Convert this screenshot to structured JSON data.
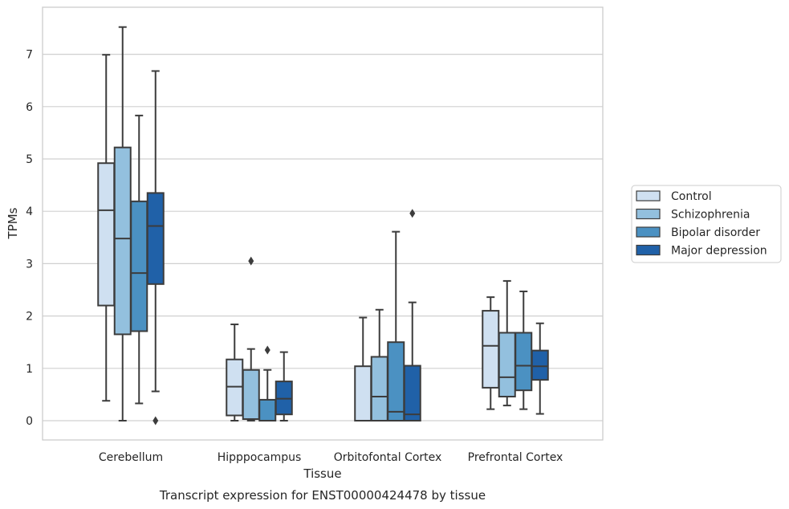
{
  "chart_data": {
    "type": "box",
    "title": "Transcript expression for ENST00000424478 by tissue",
    "xlabel": "Tissue",
    "ylabel": "TPMs",
    "ylim": [
      -0.37,
      7.85
    ],
    "yticks": [
      0,
      1,
      2,
      3,
      4,
      5,
      6,
      7
    ],
    "grid": "horizontal",
    "legend_position": "right",
    "categories": [
      "Cerebellum",
      "Hipppocampus",
      "Orbitofontal Cortex",
      "Prefrontal Cortex"
    ],
    "series": [
      {
        "name": "Control",
        "color": "#cfe0f1",
        "boxes": [
          {
            "whisker_low": 0.38,
            "q1": 2.2,
            "median": 4.02,
            "q3": 4.92,
            "whisker_high": 6.99,
            "outliers": []
          },
          {
            "whisker_low": 0.0,
            "q1": 0.1,
            "median": 0.65,
            "q3": 1.17,
            "whisker_high": 1.84,
            "outliers": []
          },
          {
            "whisker_low": 0.0,
            "q1": 0.0,
            "median": 0.0,
            "q3": 1.04,
            "whisker_high": 1.97,
            "outliers": []
          },
          {
            "whisker_low": 0.22,
            "q1": 0.63,
            "median": 1.43,
            "q3": 2.1,
            "whisker_high": 2.36,
            "outliers": []
          }
        ]
      },
      {
        "name": "Schizophrenia",
        "color": "#93c0de",
        "boxes": [
          {
            "whisker_low": 0.0,
            "q1": 1.65,
            "median": 3.48,
            "q3": 5.22,
            "whisker_high": 7.52,
            "outliers": []
          },
          {
            "whisker_low": 0.0,
            "q1": 0.03,
            "median": 0.03,
            "q3": 0.97,
            "whisker_high": 1.37,
            "outliers": [
              3.05
            ]
          },
          {
            "whisker_low": 0.0,
            "q1": 0.0,
            "median": 0.46,
            "q3": 1.22,
            "whisker_high": 2.12,
            "outliers": []
          },
          {
            "whisker_low": 0.29,
            "q1": 0.46,
            "median": 0.83,
            "q3": 1.68,
            "whisker_high": 2.67,
            "outliers": []
          }
        ]
      },
      {
        "name": "Bipolar disorder",
        "color": "#4b91c2",
        "boxes": [
          {
            "whisker_low": 0.33,
            "q1": 1.71,
            "median": 2.82,
            "q3": 4.19,
            "whisker_high": 5.83,
            "outliers": []
          },
          {
            "whisker_low": 0.0,
            "q1": 0.0,
            "median": 0.0,
            "q3": 0.4,
            "whisker_high": 0.97,
            "outliers": [
              1.35
            ]
          },
          {
            "whisker_low": 0.0,
            "q1": 0.0,
            "median": 0.17,
            "q3": 1.5,
            "whisker_high": 3.61,
            "outliers": []
          },
          {
            "whisker_low": 0.22,
            "q1": 0.58,
            "median": 1.05,
            "q3": 1.68,
            "whisker_high": 2.47,
            "outliers": []
          }
        ]
      },
      {
        "name": "Major depression",
        "color": "#2061a8",
        "boxes": [
          {
            "whisker_low": 0.56,
            "q1": 2.61,
            "median": 3.72,
            "q3": 4.35,
            "whisker_high": 6.68,
            "outliers": [
              0.0
            ]
          },
          {
            "whisker_low": 0.0,
            "q1": 0.12,
            "median": 0.42,
            "q3": 0.75,
            "whisker_high": 1.31,
            "outliers": []
          },
          {
            "whisker_low": 0.0,
            "q1": 0.0,
            "median": 0.12,
            "q3": 1.05,
            "whisker_high": 2.26,
            "outliers": [
              3.96
            ]
          },
          {
            "whisker_low": 0.13,
            "q1": 0.78,
            "median": 1.04,
            "q3": 1.34,
            "whisker_high": 1.86,
            "outliers": []
          }
        ]
      }
    ]
  },
  "colors": {
    "box_edge": "#3c3c3c",
    "grid": "#d0d0d0",
    "frame": "#cccccc",
    "text": "#262626"
  }
}
